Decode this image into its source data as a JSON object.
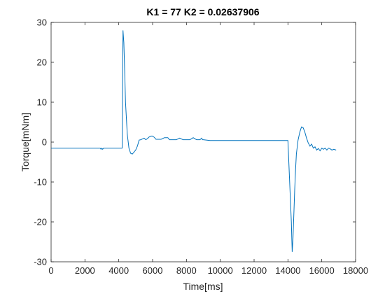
{
  "chart_data": {
    "type": "line",
    "title": "K1 = 77 K2 = 0.02637906",
    "xlabel": "Time[ms]",
    "ylabel": "Torque[mNm]",
    "xlim": [
      0,
      18000
    ],
    "ylim": [
      -30,
      30
    ],
    "x_ticks": [
      0,
      2000,
      4000,
      6000,
      8000,
      10000,
      12000,
      14000,
      16000,
      18000
    ],
    "y_ticks": [
      -30,
      -20,
      -10,
      0,
      10,
      20,
      30
    ],
    "grid": false,
    "series": [
      {
        "color": "#0072BD",
        "x": [
          0,
          2900,
          2950,
          3000,
          3050,
          3100,
          3150,
          4200,
          4250,
          4300,
          4350,
          4400,
          4500,
          4600,
          4700,
          4800,
          4900,
          5000,
          5100,
          5200,
          5300,
          5400,
          5500,
          5600,
          5700,
          5800,
          5900,
          6000,
          6100,
          6200,
          6300,
          6500,
          6700,
          6900,
          7000,
          7200,
          7400,
          7600,
          7800,
          8000,
          8200,
          8400,
          8600,
          8800,
          8900,
          8950,
          9000,
          9400,
          10000,
          12000,
          14000,
          14200,
          14250,
          14300,
          14350,
          14400,
          14450,
          14500,
          14600,
          14700,
          14800,
          14900,
          15000,
          15100,
          15200,
          15300,
          15400,
          15500,
          15600,
          15700,
          15800,
          15900,
          16000,
          16100,
          16200,
          16300,
          16400,
          16500,
          16600,
          16700,
          16850
        ],
        "y": [
          -1.5,
          -1.5,
          -1.8,
          -1.5,
          -1.8,
          -1.5,
          -1.5,
          -1.5,
          28,
          25,
          18,
          10,
          2,
          -1.5,
          -2.8,
          -3,
          -2.5,
          -2,
          -1,
          0.5,
          0.6,
          0.8,
          1,
          0.6,
          0.9,
          1.3,
          1.5,
          1.5,
          1.2,
          0.7,
          0.7,
          0.7,
          1.1,
          1.1,
          0.6,
          0.6,
          0.6,
          1,
          0.6,
          0.6,
          0.6,
          1.1,
          0.6,
          0.6,
          1,
          0.6,
          0.6,
          0.4,
          0.4,
          0.4,
          0.4,
          -20,
          -27.5,
          -24,
          -18,
          -12,
          -7,
          -3,
          0.5,
          2.5,
          3.8,
          3.6,
          2.5,
          1,
          -0.2,
          -1,
          -0.5,
          -1.5,
          -1.2,
          -2,
          -1.6,
          -2.2,
          -1.5,
          -1.8,
          -1.5,
          -2,
          -1.5,
          -1.7,
          -2,
          -1.8,
          -2
        ]
      }
    ]
  }
}
